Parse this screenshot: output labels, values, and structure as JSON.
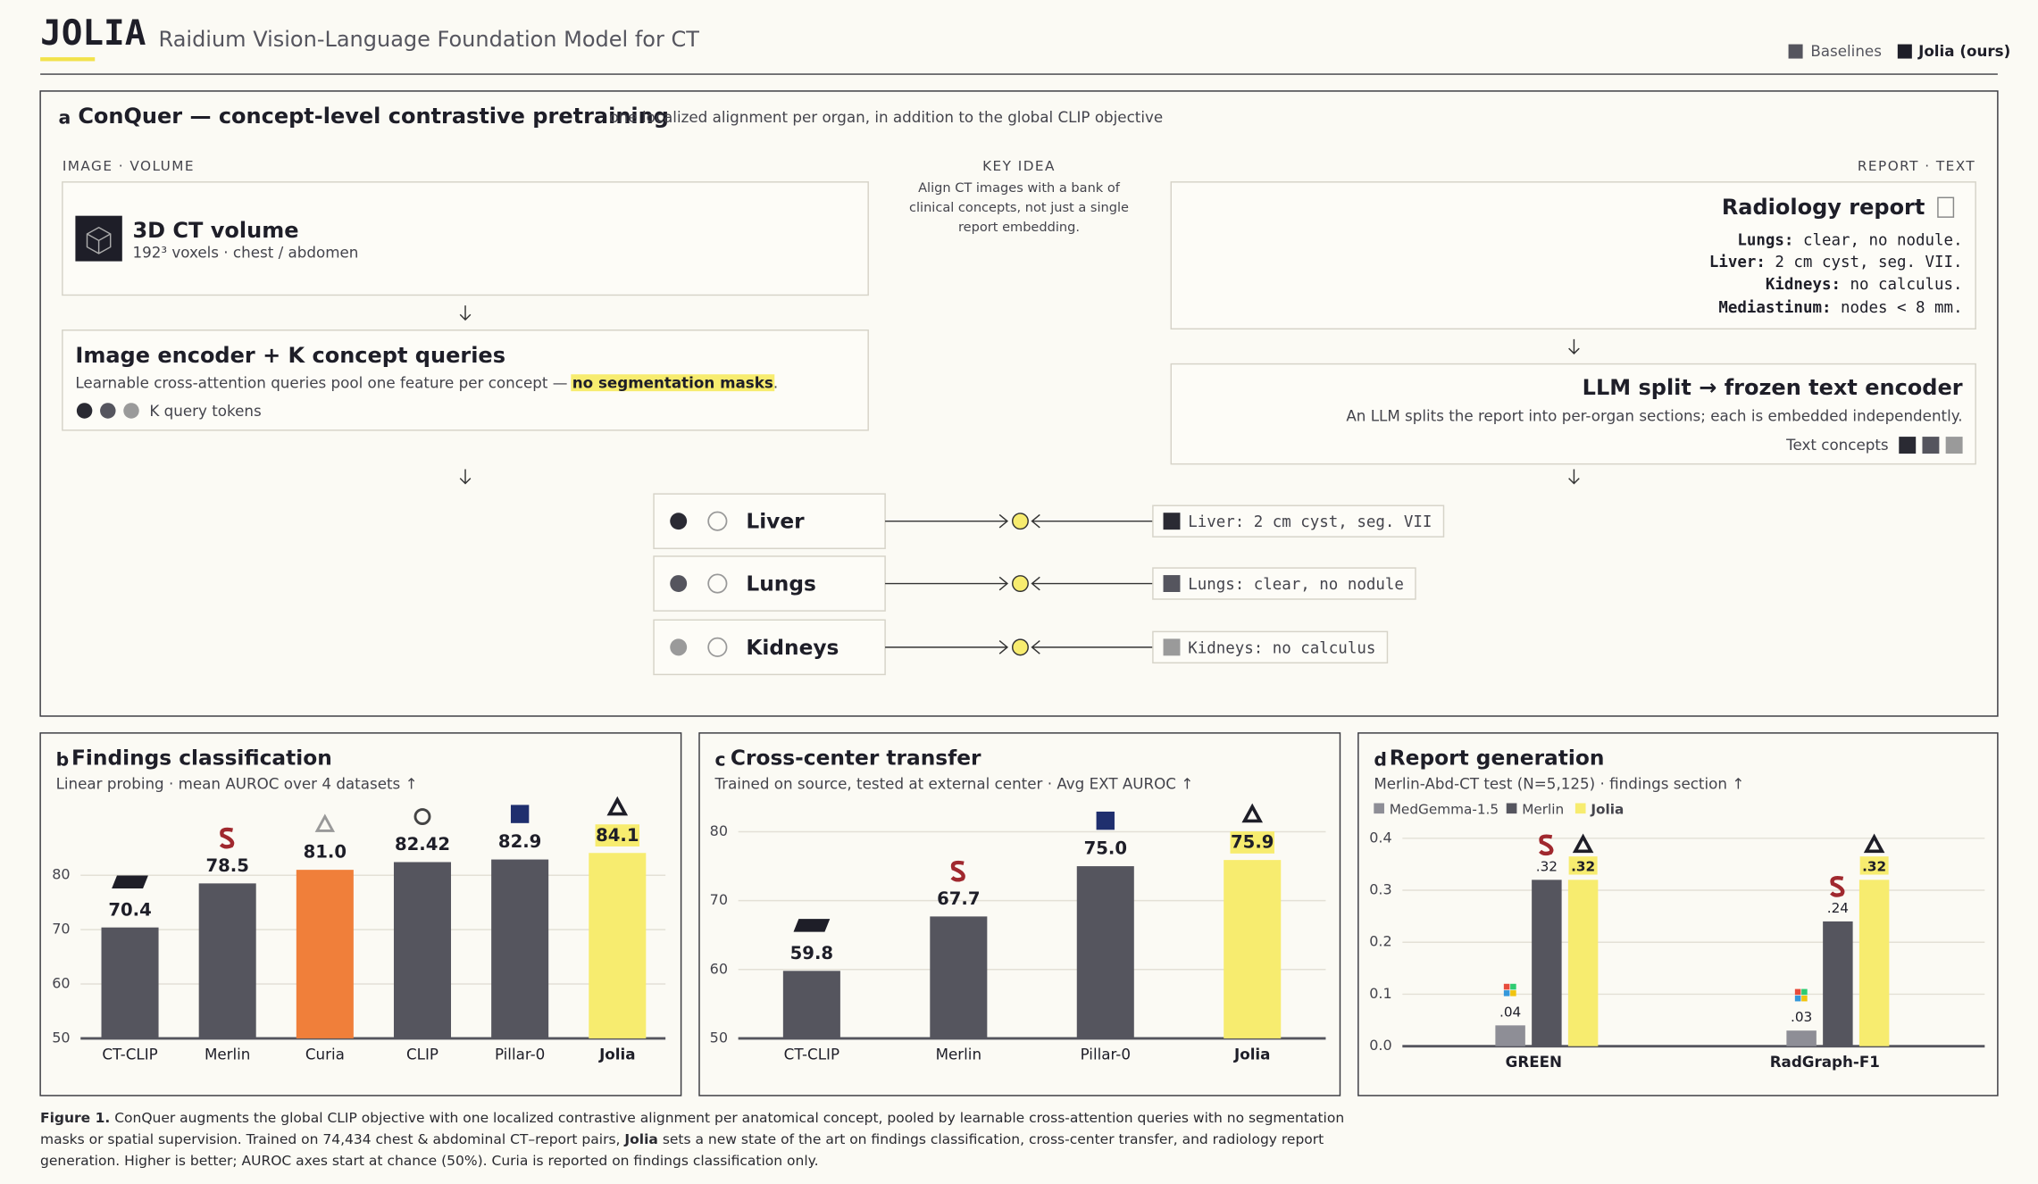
{
  "header": {
    "title": "JOLIA",
    "subtitle": "Raidium Vision-Language Foundation Model for CT",
    "legend": [
      "Baselines",
      "Jolia (ours)"
    ]
  },
  "panel_a": {
    "letter": "a",
    "title": "ConQuer — concept-level contrastive pretraining",
    "subtitle": "one localized alignment per organ, in addition to the global CLIP objective",
    "left_label": "IMAGE · VOLUME",
    "key_idea_label": "KEY IDEA",
    "key_idea_lines": [
      "Align CT images with a bank of",
      "clinical concepts, not just a single",
      "report embedding."
    ],
    "right_label": "REPORT · TEXT",
    "ct_box": {
      "title": "3D CT volume",
      "subtitle": "192³ voxels · chest / abdomen"
    },
    "encoder": {
      "title": "Image encoder + K concept queries",
      "text": "Learnable cross-attention queries pool one feature per concept — ",
      "highlight": "no segmentation masks",
      "text_end": ".",
      "tokens_label": "K query tokens"
    },
    "report": {
      "title": "Radiology report",
      "lines": [
        {
          "key": "Lungs:",
          "text": " clear, no nodule."
        },
        {
          "key": "Liver:",
          "text": " 2 cm cyst, seg. VII."
        },
        {
          "key": "Kidneys:",
          "text": " no calculus."
        },
        {
          "key": "Mediastinum:",
          "text": " nodes < 8 mm."
        }
      ]
    },
    "llm": {
      "title": "LLM split → frozen text encoder",
      "text": "An LLM splits the report into per-organ sections; each is embedded independently.",
      "concepts_label": "Text concepts"
    },
    "concepts": [
      {
        "organ": "Liver",
        "text": "Liver: 2 cm cyst, seg. VII"
      },
      {
        "organ": "Lungs",
        "text": "Lungs: clear, no nodule"
      },
      {
        "organ": "Kidneys",
        "text": "Kidneys: no calculus"
      }
    ]
  },
  "chart_data": [
    {
      "type": "bar",
      "letter": "b",
      "title": "Findings classification",
      "subtitle": "Linear probing · mean AUROC over 4 datasets ↑",
      "categories": [
        "CT-CLIP",
        "Merlin",
        "Curia",
        "CLIP",
        "Pillar-0",
        "Jolia"
      ],
      "values": [
        70.4,
        78.5,
        81.0,
        82.42,
        82.9,
        84.1
      ],
      "value_labels": [
        "70.4",
        "78.5",
        "81.0",
        "82.42",
        "82.9",
        "84.1"
      ],
      "colors": [
        "#55555e",
        "#55555e",
        "#f07f3a",
        "#55555e",
        "#55555e",
        "#f7ec6f"
      ],
      "highlight_index": 5,
      "ylim": [
        50,
        88
      ],
      "yticks": [
        50,
        60,
        70,
        80
      ],
      "grid": true
    },
    {
      "type": "bar",
      "letter": "c",
      "title": "Cross-center transfer",
      "subtitle": "Trained on source, tested at external center · Avg EXT AUROC ↑",
      "categories": [
        "CT-CLIP",
        "Merlin",
        "Pillar-0",
        "Jolia"
      ],
      "values": [
        59.8,
        67.7,
        75.0,
        75.9
      ],
      "value_labels": [
        "59.8",
        "67.7",
        "75.0",
        "75.9"
      ],
      "colors": [
        "#55555e",
        "#55555e",
        "#55555e",
        "#f7ec6f"
      ],
      "highlight_index": 3,
      "ylim": [
        50,
        82
      ],
      "yticks": [
        50,
        60,
        70,
        80
      ],
      "grid": true
    },
    {
      "type": "grouped_bar",
      "letter": "d",
      "title": "Report generation",
      "subtitle": "Merlin-Abd-CT test (N=5,125) · findings section ↑",
      "categories": [
        "GREEN",
        "RadGraph-F1"
      ],
      "series": [
        {
          "name": "MedGemma-1.5",
          "color": "#8e8e96",
          "values": [
            0.04,
            0.03
          ],
          "value_labels": [
            ".04",
            ".03"
          ]
        },
        {
          "name": "Merlin",
          "color": "#55555e",
          "values": [
            0.32,
            0.24
          ],
          "value_labels": [
            ".32",
            ".24"
          ]
        },
        {
          "name": "Jolia",
          "color": "#f7ec6f",
          "values": [
            0.32,
            0.32
          ],
          "value_labels": [
            ".32",
            ".32"
          ]
        }
      ],
      "highlight_index": 2,
      "ylim": [
        0,
        0.4
      ],
      "yticks": [
        {
          "value": 0,
          "label": "0.0"
        },
        0.1,
        0.2,
        0.3,
        0.4
      ],
      "grid": true
    }
  ],
  "caption": {
    "label": "Figure 1.",
    "text": " ConQuer augments the global CLIP objective with one localized contrastive alignment per anatomical concept, pooled by learnable cross-attention queries with no segmentation masks or spatial supervision. Trained on 74,434 chest & abdominal CT–report pairs, ",
    "bold": "Jolia",
    "text_end": " sets a new state of the art on findings classification, cross-center transfer, and radiology report generation. Higher is better; AUROC axes start at chance (50%). Curia is reported on findings classification only."
  }
}
